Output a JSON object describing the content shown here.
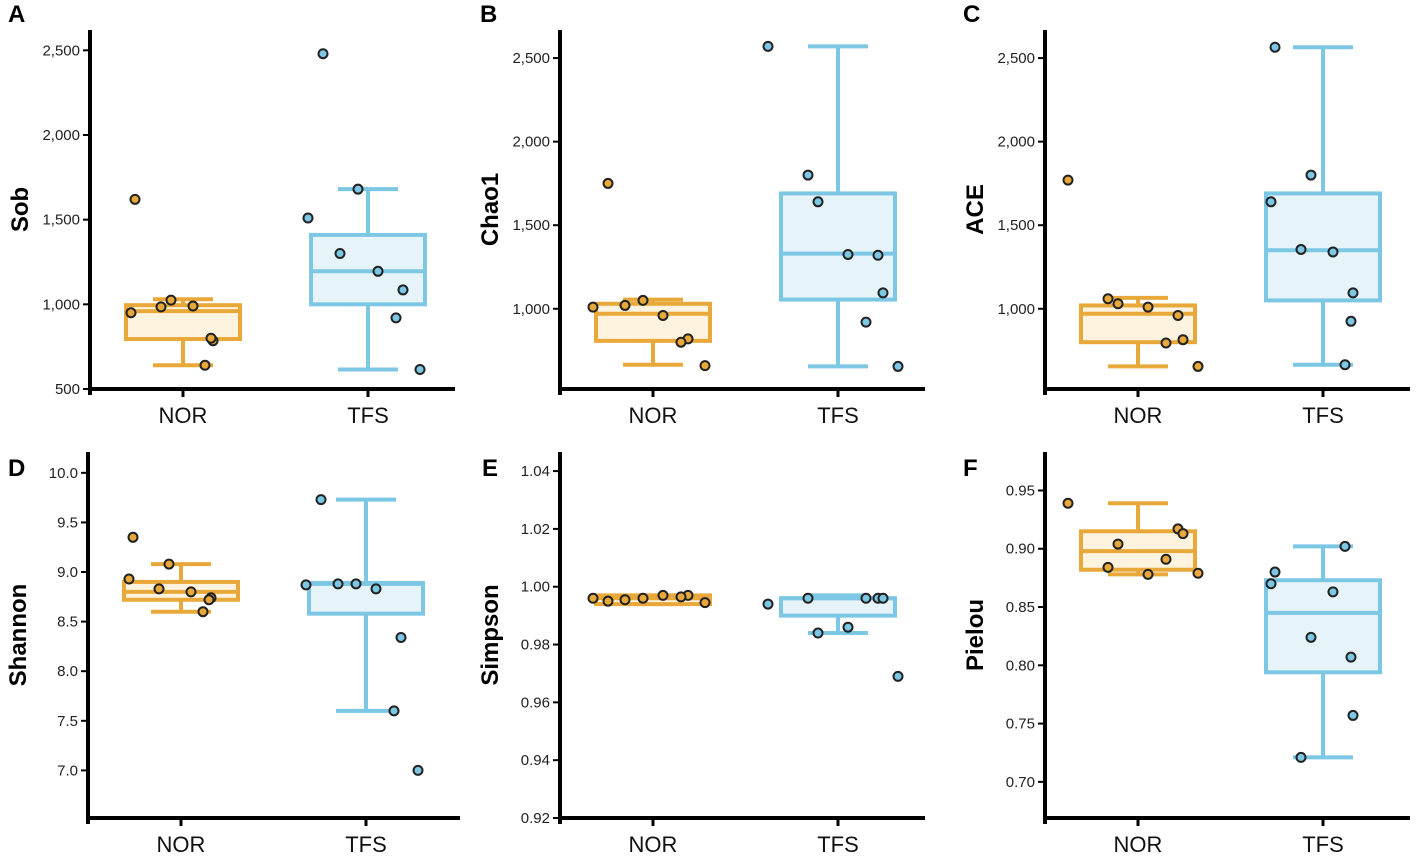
{
  "colors": {
    "NOR_stroke": "#E8A93A",
    "NOR_fill": "#FEF3DF",
    "TFS_stroke": "#7CC7E3",
    "TFS_fill": "#E6F4FA",
    "axis": "#000000"
  },
  "chart_data": [
    {
      "type": "box",
      "panel": "A",
      "ylabel": "Sob",
      "categories": [
        "NOR",
        "TFS"
      ],
      "ylim": [
        500,
        2620
      ],
      "ticks": [
        500,
        1000,
        1500,
        2000,
        2500
      ],
      "tick_labels": [
        "500",
        "1,000",
        "1,500",
        "2,000",
        "2,500"
      ],
      "boxes": [
        {
          "min": 640,
          "q1": 795,
          "median": 960,
          "q3": 995,
          "max": 1030
        },
        {
          "min": 615,
          "q1": 1000,
          "median": 1195,
          "q3": 1410,
          "max": 1680
        }
      ],
      "points": [
        [
          1620,
          1025,
          950,
          985,
          990,
          785,
          800,
          640
        ],
        [
          2480,
          1680,
          1510,
          1300,
          1195,
          1085,
          920,
          615
        ]
      ]
    },
    {
      "type": "box",
      "panel": "B",
      "ylabel": "Chao1",
      "categories": [
        "NOR",
        "TFS"
      ],
      "ylim": [
        520,
        2668
      ],
      "ticks": [
        1000,
        1500,
        2000,
        2500
      ],
      "tick_labels": [
        "1,000",
        "1,500",
        "2,000",
        "2,500"
      ],
      "boxes": [
        {
          "min": 665,
          "q1": 808,
          "median": 970,
          "q3": 1030,
          "max": 1055
        },
        {
          "min": 655,
          "q1": 1055,
          "median": 1330,
          "q3": 1690,
          "max": 2570
        }
      ],
      "points": [
        [
          1750,
          1050,
          1010,
          1020,
          960,
          820,
          800,
          660
        ],
        [
          2570,
          1800,
          1640,
          1325,
          1320,
          1095,
          920,
          655
        ]
      ]
    },
    {
      "type": "box",
      "panel": "C",
      "ylabel": "ACE",
      "categories": [
        "NOR",
        "TFS"
      ],
      "ylim": [
        520,
        2668
      ],
      "ticks": [
        1000,
        1500,
        2000,
        2500
      ],
      "tick_labels": [
        "1,000",
        "1,500",
        "2,000",
        "2,500"
      ],
      "boxes": [
        {
          "min": 655,
          "q1": 800,
          "median": 970,
          "q3": 1020,
          "max": 1065
        },
        {
          "min": 665,
          "q1": 1050,
          "median": 1350,
          "q3": 1690,
          "max": 2565
        }
      ],
      "points": [
        [
          1770,
          1060,
          1030,
          1010,
          960,
          815,
          795,
          655
        ],
        [
          2565,
          1800,
          1640,
          1355,
          1340,
          1095,
          925,
          665
        ]
      ]
    },
    {
      "type": "box",
      "panel": "D",
      "ylabel": "Shannon",
      "categories": [
        "NOR",
        "TFS"
      ],
      "ylim": [
        6.52,
        10.21
      ],
      "ticks": [
        7.0,
        7.5,
        8.0,
        8.5,
        9.0,
        9.5,
        10.0
      ],
      "tick_labels": [
        "7.0",
        "7.5",
        "8.0",
        "8.5",
        "9.0",
        "9.5",
        "10.0"
      ],
      "boxes": [
        {
          "min": 8.6,
          "q1": 8.72,
          "median": 8.8,
          "q3": 8.9,
          "max": 9.08
        },
        {
          "min": 7.6,
          "q1": 8.58,
          "median": 8.88,
          "q3": 8.89,
          "max": 9.73
        }
      ],
      "points": [
        [
          9.35,
          9.08,
          8.93,
          8.83,
          8.8,
          8.74,
          8.72,
          8.6
        ],
        [
          9.73,
          8.88,
          8.87,
          8.88,
          8.83,
          8.34,
          7.6,
          7.0
        ]
      ]
    },
    {
      "type": "box",
      "panel": "E",
      "ylabel": "Simpson",
      "categories": [
        "NOR",
        "TFS"
      ],
      "ylim": [
        0.92,
        1.0466
      ],
      "ticks": [
        0.92,
        0.94,
        0.96,
        0.98,
        1.0,
        1.02,
        1.04
      ],
      "tick_labels": [
        "0.92",
        "0.94",
        "0.96",
        "0.98",
        "1.00",
        "1.02",
        "1.04"
      ],
      "boxes": [
        {
          "min": 0.994,
          "q1": 0.994,
          "median": 0.996,
          "q3": 0.997,
          "max": 0.997
        },
        {
          "min": 0.984,
          "q1": 0.99,
          "median": 0.996,
          "q3": 0.996,
          "max": 0.997
        }
      ],
      "points": [
        [
          0.995,
          0.996,
          0.996,
          0.9955,
          0.997,
          0.997,
          0.9965,
          0.9945
        ],
        [
          0.994,
          0.996,
          0.984,
          0.986,
          0.996,
          0.996,
          0.996,
          0.969
        ]
      ]
    },
    {
      "type": "box",
      "panel": "F",
      "ylabel": "Pielou",
      "categories": [
        "NOR",
        "TFS"
      ],
      "ylim": [
        0.669,
        0.983
      ],
      "ticks": [
        0.7,
        0.75,
        0.8,
        0.85,
        0.9,
        0.95
      ],
      "tick_labels": [
        "0.70",
        "0.75",
        "0.80",
        "0.85",
        "0.90",
        "0.95"
      ],
      "boxes": [
        {
          "min": 0.878,
          "q1": 0.882,
          "median": 0.898,
          "q3": 0.915,
          "max": 0.939
        },
        {
          "min": 0.721,
          "q1": 0.794,
          "median": 0.845,
          "q3": 0.873,
          "max": 0.902
        }
      ],
      "points": [
        [
          0.939,
          0.884,
          0.904,
          0.878,
          0.917,
          0.913,
          0.891,
          0.879
        ],
        [
          0.88,
          0.824,
          0.87,
          0.721,
          0.863,
          0.757,
          0.807,
          0.902
        ]
      ]
    }
  ]
}
